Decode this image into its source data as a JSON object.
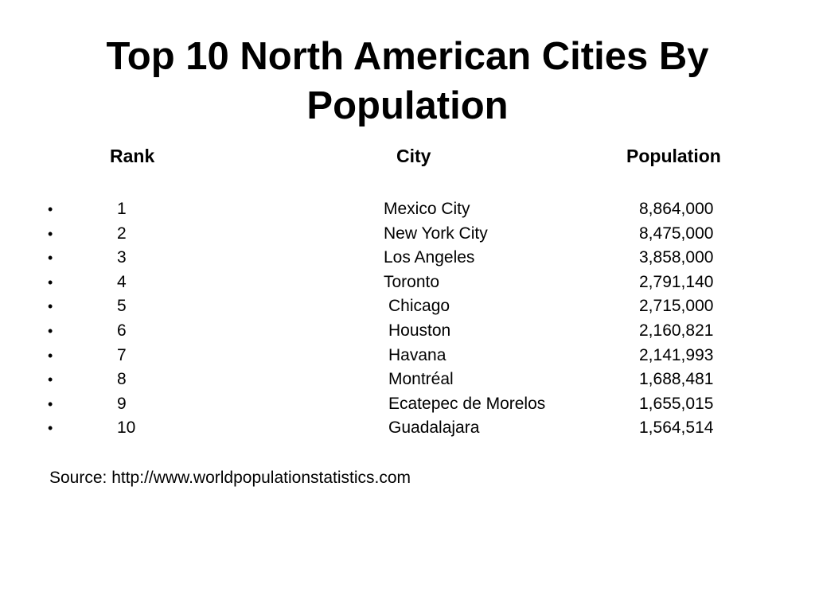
{
  "title": {
    "line1": "Top 10 North American Cities By",
    "line2": "Population"
  },
  "headers": {
    "rank": "Rank",
    "city": "City",
    "population": "Population"
  },
  "bullet": "•",
  "rows": [
    {
      "rank": "1",
      "city": "Mexico City",
      "population": "8,864,000"
    },
    {
      "rank": "2",
      "city": "New York City",
      "population": "8,475,000"
    },
    {
      "rank": "3",
      "city": "Los Angeles",
      "population": "3,858,000"
    },
    {
      "rank": "4",
      "city": "Toronto",
      "population": "2,791,140"
    },
    {
      "rank": "5",
      "city": "Chicago",
      "population": "2,715,000"
    },
    {
      "rank": "6",
      "city": "Houston",
      "population": "2,160,821"
    },
    {
      "rank": "7",
      "city": "Havana",
      "population": "2,141,993"
    },
    {
      "rank": "8",
      "city": "Montréal",
      "population": "1,688,481"
    },
    {
      "rank": "9",
      "city": "Ecatepec de Morelos",
      "population": "1,655,015"
    },
    {
      "rank": "10",
      "city": "Guadalajara",
      "population": "1,564,514"
    }
  ],
  "source": "Source: http://www.worldpopulationstatistics.com"
}
